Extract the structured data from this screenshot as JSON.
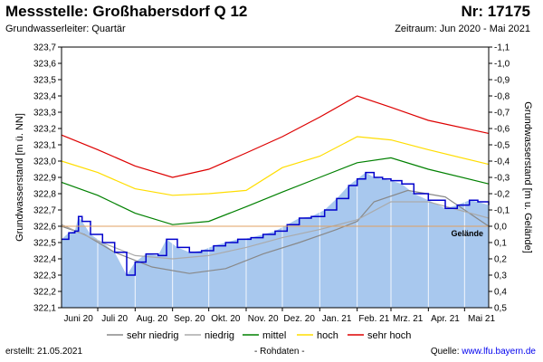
{
  "header": {
    "title": "Messstelle: Großhabersdorf Q 12",
    "nr": "Nr: 17175",
    "aquifer": "Grundwasserleiter: Quartär",
    "period": "Zeitraum: Jun 2020 - Mai 2021"
  },
  "footer": {
    "created": "erstellt:  21.05.2021",
    "raw": "- Rohdaten -",
    "source_label": "Quelle: ",
    "source_url": "www.lfu.bayern.de"
  },
  "colors": {
    "area_fill": "#a8c8ee",
    "measured_line": "#0000cc",
    "sehr_niedrig": "#888888",
    "niedrig": "#aaaaaa",
    "mittel": "#008000",
    "hoch": "#ffdd00",
    "sehr_hoch": "#dd0000",
    "gelaende": "#e0a060"
  },
  "chart_data": {
    "type": "line",
    "x_unit": "date",
    "xlim": [
      "2020-06-01",
      "2021-05-21"
    ],
    "x_ticks": [
      {
        "label": "Juni 20",
        "date": "2020-06-15"
      },
      {
        "label": "Juli 20",
        "date": "2020-07-15"
      },
      {
        "label": "Aug. 20",
        "date": "2020-08-15"
      },
      {
        "label": "Sep. 20",
        "date": "2020-09-15"
      },
      {
        "label": "Okt. 20",
        "date": "2020-10-15"
      },
      {
        "label": "Nov. 20",
        "date": "2020-11-15"
      },
      {
        "label": "Dez. 20",
        "date": "2020-12-15"
      },
      {
        "label": "Jan. 21",
        "date": "2021-01-15"
      },
      {
        "label": "Feb. 21",
        "date": "2021-02-15"
      },
      {
        "label": "Mrz. 21",
        "date": "2021-03-15"
      },
      {
        "label": "Apr. 21",
        "date": "2021-04-15"
      },
      {
        "label": "Mai 21",
        "date": "2021-05-15"
      }
    ],
    "grid_dates": [
      "2020-07-01",
      "2020-08-01",
      "2020-09-01",
      "2020-10-01",
      "2020-11-01",
      "2020-12-01",
      "2021-01-01",
      "2021-02-01",
      "2021-03-01",
      "2021-04-01",
      "2021-05-01"
    ],
    "ylabel_left": "Grundwasserstand [m ü. NN]",
    "ylabel_right": "Grundwasserstand [m u. Gelände]",
    "ylim": [
      322.1,
      323.7
    ],
    "y_ticks": [
      "322,1",
      "322,2",
      "322,3",
      "322,4",
      "322,5",
      "322,6",
      "322,7",
      "322,8",
      "322,9",
      "323,0",
      "323,1",
      "323,2",
      "323,3",
      "323,4",
      "323,5",
      "323,6",
      "323,7"
    ],
    "y_ticks_right": [
      "0,5",
      "0,4",
      "0,3",
      "0,2",
      "0,1",
      "0,0",
      "-0,1",
      "-0,2",
      "-0,3",
      "-0,4",
      "-0,5",
      "-0,6",
      "-0,7",
      "-0,8",
      "-0,9",
      "-1,0",
      "-1,1"
    ],
    "gelaende": {
      "label": "Gelände",
      "value": 322.6
    },
    "legend": [
      "sehr niedrig",
      "niedrig",
      "mittel",
      "hoch",
      "sehr hoch"
    ],
    "series": [
      {
        "name": "sehr niedrig",
        "x": [
          "2020-06-01",
          "2020-06-20",
          "2020-07-15",
          "2020-08-15",
          "2020-09-15",
          "2020-10-15",
          "2020-11-15",
          "2020-12-15",
          "2021-01-15",
          "2021-02-01",
          "2021-02-15",
          "2021-03-15",
          "2021-04-15",
          "2021-05-21"
        ],
        "y": [
          322.6,
          322.55,
          322.44,
          322.35,
          322.31,
          322.34,
          322.43,
          322.5,
          322.58,
          322.63,
          322.75,
          322.82,
          322.78,
          322.6
        ]
      },
      {
        "name": "niedrig",
        "x": [
          "2020-06-01",
          "2020-07-01",
          "2020-08-01",
          "2020-09-01",
          "2020-10-01",
          "2020-11-01",
          "2020-12-01",
          "2021-01-01",
          "2021-02-01",
          "2021-03-01",
          "2021-04-01",
          "2021-05-21"
        ],
        "y": [
          322.61,
          322.51,
          322.42,
          322.4,
          322.42,
          322.47,
          322.53,
          322.58,
          322.64,
          322.75,
          322.75,
          322.65
        ]
      },
      {
        "name": "mittel",
        "x": [
          "2020-06-01",
          "2020-07-01",
          "2020-08-01",
          "2020-09-01",
          "2020-10-01",
          "2020-11-01",
          "2020-12-01",
          "2021-01-01",
          "2021-02-01",
          "2021-03-01",
          "2021-04-01",
          "2021-05-21"
        ],
        "y": [
          322.87,
          322.79,
          322.68,
          322.61,
          322.63,
          322.72,
          322.81,
          322.9,
          322.99,
          323.02,
          322.95,
          322.86
        ]
      },
      {
        "name": "hoch",
        "x": [
          "2020-06-01",
          "2020-07-01",
          "2020-08-01",
          "2020-09-01",
          "2020-10-01",
          "2020-11-01",
          "2020-12-01",
          "2021-01-01",
          "2021-02-01",
          "2021-03-01",
          "2021-04-01",
          "2021-05-21"
        ],
        "y": [
          323.0,
          322.93,
          322.83,
          322.79,
          322.8,
          322.82,
          322.96,
          323.03,
          323.15,
          323.13,
          323.07,
          322.98
        ]
      },
      {
        "name": "sehr hoch",
        "x": [
          "2020-06-01",
          "2020-07-01",
          "2020-08-01",
          "2020-09-01",
          "2020-10-01",
          "2020-11-01",
          "2020-12-01",
          "2021-01-01",
          "2021-02-01",
          "2021-03-01",
          "2021-04-01",
          "2021-05-21"
        ],
        "y": [
          323.16,
          323.07,
          322.97,
          322.9,
          322.95,
          323.05,
          323.15,
          323.27,
          323.4,
          323.33,
          323.25,
          323.17
        ]
      },
      {
        "name": "Messwerte",
        "x": [
          "2020-06-01",
          "2020-06-07",
          "2020-06-12",
          "2020-06-15",
          "2020-06-18",
          "2020-06-25",
          "2020-07-05",
          "2020-07-15",
          "2020-07-25",
          "2020-08-01",
          "2020-08-10",
          "2020-08-20",
          "2020-08-27",
          "2020-09-05",
          "2020-09-15",
          "2020-09-25",
          "2020-10-05",
          "2020-10-15",
          "2020-10-25",
          "2020-11-05",
          "2020-11-15",
          "2020-11-25",
          "2020-12-05",
          "2020-12-15",
          "2020-12-25",
          "2021-01-05",
          "2021-01-15",
          "2021-01-25",
          "2021-02-01",
          "2021-02-08",
          "2021-02-15",
          "2021-02-22",
          "2021-03-01",
          "2021-03-10",
          "2021-03-20",
          "2021-04-01",
          "2021-04-15",
          "2021-04-25",
          "2021-05-05",
          "2021-05-12",
          "2021-05-21"
        ],
        "y": [
          322.52,
          322.56,
          322.57,
          322.66,
          322.63,
          322.55,
          322.5,
          322.44,
          322.3,
          322.38,
          322.43,
          322.42,
          322.52,
          322.47,
          322.44,
          322.45,
          322.48,
          322.5,
          322.52,
          322.53,
          322.55,
          322.57,
          322.61,
          322.65,
          322.66,
          322.7,
          322.77,
          322.85,
          322.89,
          322.93,
          322.9,
          322.89,
          322.88,
          322.86,
          322.8,
          322.76,
          322.71,
          322.73,
          322.76,
          322.75,
          322.73
        ]
      }
    ]
  }
}
